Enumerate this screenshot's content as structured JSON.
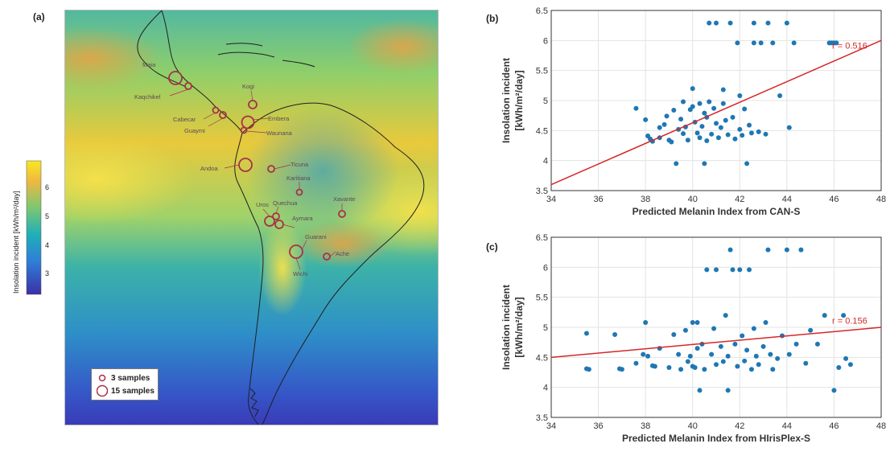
{
  "map": {
    "panel_label": "(a)",
    "colorbar": {
      "label": "Insolation incident [kWh/m²/day]",
      "ticks": [
        "6",
        "5",
        "4",
        "3"
      ]
    },
    "legend": {
      "small_label": "3 samples",
      "large_label": "15 samples"
    },
    "populations": [
      "Maia",
      "Kaqchikel",
      "Kogi",
      "Cabecar",
      "Embera",
      "Guaymi",
      "Waunana",
      "Andoa",
      "Ticuna",
      "Karitiana",
      "Quechua",
      "Uros",
      "Aymara",
      "Xavante",
      "Guarani",
      "Ache",
      "Wichi"
    ],
    "marker_color": "#a83048"
  },
  "chart_data": [
    {
      "panel_label": "(b)",
      "type": "scatter",
      "xlabel": "Predicted Melanin Index from CAN-S",
      "ylabel": "Insolation incident",
      "ylabel_unit": "[kWh/m²/day]",
      "xlim": [
        34,
        48
      ],
      "ylim": [
        3.5,
        6.5
      ],
      "xticks": [
        "34",
        "36",
        "38",
        "40",
        "42",
        "44",
        "46",
        "48"
      ],
      "yticks": [
        "3.5",
        "4",
        "4.5",
        "5",
        "5.5",
        "6",
        "6.5"
      ],
      "r_label": "r = 0.516",
      "point_color": "#1f77b4",
      "line_color": "#d62728",
      "fit_line": [
        [
          34,
          3.6
        ],
        [
          48,
          6.0
        ]
      ],
      "points": [
        [
          37.6,
          4.87
        ],
        [
          38.0,
          4.68
        ],
        [
          38.1,
          4.41
        ],
        [
          38.2,
          4.36
        ],
        [
          38.3,
          4.32
        ],
        [
          38.6,
          4.38
        ],
        [
          38.6,
          4.55
        ],
        [
          38.8,
          4.6
        ],
        [
          38.9,
          4.74
        ],
        [
          39.0,
          4.34
        ],
        [
          39.1,
          4.31
        ],
        [
          39.2,
          4.84
        ],
        [
          39.3,
          3.95
        ],
        [
          39.4,
          4.52
        ],
        [
          39.5,
          4.69
        ],
        [
          39.6,
          4.45
        ],
        [
          39.6,
          4.98
        ],
        [
          39.7,
          4.56
        ],
        [
          39.8,
          4.34
        ],
        [
          39.9,
          4.85
        ],
        [
          40.0,
          4.9
        ],
        [
          40.0,
          5.2
        ],
        [
          40.1,
          4.64
        ],
        [
          40.2,
          4.46
        ],
        [
          40.3,
          4.38
        ],
        [
          40.3,
          4.95
        ],
        [
          40.4,
          4.57
        ],
        [
          40.5,
          4.79
        ],
        [
          40.5,
          3.95
        ],
        [
          40.6,
          4.33
        ],
        [
          40.6,
          4.72
        ],
        [
          40.7,
          4.98
        ],
        [
          40.7,
          6.29
        ],
        [
          40.8,
          4.44
        ],
        [
          40.9,
          4.87
        ],
        [
          41.0,
          4.62
        ],
        [
          41.0,
          6.29
        ],
        [
          41.1,
          4.38
        ],
        [
          41.2,
          4.55
        ],
        [
          41.3,
          4.95
        ],
        [
          41.3,
          5.18
        ],
        [
          41.4,
          4.67
        ],
        [
          41.5,
          4.43
        ],
        [
          41.6,
          6.29
        ],
        [
          41.7,
          4.72
        ],
        [
          41.8,
          4.36
        ],
        [
          41.9,
          5.96
        ],
        [
          42.0,
          4.52
        ],
        [
          42.0,
          5.08
        ],
        [
          42.1,
          4.42
        ],
        [
          42.2,
          4.86
        ],
        [
          42.3,
          3.95
        ],
        [
          42.4,
          4.59
        ],
        [
          42.5,
          4.46
        ],
        [
          42.6,
          5.96
        ],
        [
          42.6,
          6.29
        ],
        [
          42.8,
          4.48
        ],
        [
          42.9,
          5.96
        ],
        [
          43.1,
          4.44
        ],
        [
          43.2,
          6.29
        ],
        [
          43.4,
          5.96
        ],
        [
          43.7,
          5.08
        ],
        [
          44.0,
          6.29
        ],
        [
          44.1,
          4.55
        ],
        [
          44.3,
          5.96
        ],
        [
          45.8,
          5.96
        ],
        [
          45.9,
          5.96
        ],
        [
          46.0,
          5.96
        ],
        [
          46.1,
          5.96
        ]
      ]
    },
    {
      "panel_label": "(c)",
      "type": "scatter",
      "xlabel": "Predicted Melanin Index from HIrisPlex-S",
      "ylabel": "Insolation incident",
      "ylabel_unit": "[kWh/m²/day]",
      "xlim": [
        34,
        48
      ],
      "ylim": [
        3.5,
        6.5
      ],
      "xticks": [
        "34",
        "36",
        "38",
        "40",
        "42",
        "44",
        "46",
        "48"
      ],
      "yticks": [
        "3.5",
        "4",
        "4.5",
        "5",
        "5.5",
        "6",
        "6.5"
      ],
      "r_label": "r = 0.156",
      "point_color": "#1f77b4",
      "line_color": "#d62728",
      "fit_line": [
        [
          34,
          4.5
        ],
        [
          48,
          5.0
        ]
      ],
      "points": [
        [
          35.5,
          4.9
        ],
        [
          35.5,
          4.31
        ],
        [
          35.6,
          4.3
        ],
        [
          36.7,
          4.88
        ],
        [
          36.9,
          4.31
        ],
        [
          37.0,
          4.3
        ],
        [
          37.6,
          4.4
        ],
        [
          37.9,
          4.55
        ],
        [
          38.0,
          5.08
        ],
        [
          38.1,
          4.52
        ],
        [
          38.3,
          4.36
        ],
        [
          38.4,
          4.35
        ],
        [
          38.6,
          4.65
        ],
        [
          39.0,
          4.33
        ],
        [
          39.2,
          4.88
        ],
        [
          39.4,
          4.55
        ],
        [
          39.5,
          4.3
        ],
        [
          39.7,
          4.95
        ],
        [
          39.8,
          4.43
        ],
        [
          39.9,
          4.52
        ],
        [
          40.0,
          4.35
        ],
        [
          40.0,
          5.08
        ],
        [
          40.1,
          4.33
        ],
        [
          40.2,
          4.65
        ],
        [
          40.2,
          5.08
        ],
        [
          40.3,
          3.95
        ],
        [
          40.4,
          4.72
        ],
        [
          40.5,
          4.3
        ],
        [
          40.6,
          5.96
        ],
        [
          40.8,
          4.55
        ],
        [
          40.9,
          4.98
        ],
        [
          41.0,
          5.96
        ],
        [
          41.0,
          4.38
        ],
        [
          41.2,
          4.68
        ],
        [
          41.3,
          4.43
        ],
        [
          41.4,
          5.2
        ],
        [
          41.5,
          4.52
        ],
        [
          41.5,
          3.95
        ],
        [
          41.6,
          6.29
        ],
        [
          41.7,
          5.96
        ],
        [
          41.8,
          4.72
        ],
        [
          41.9,
          4.35
        ],
        [
          42.0,
          5.96
        ],
        [
          42.1,
          4.86
        ],
        [
          42.2,
          4.44
        ],
        [
          42.3,
          4.62
        ],
        [
          42.4,
          5.96
        ],
        [
          42.5,
          4.3
        ],
        [
          42.6,
          4.98
        ],
        [
          42.7,
          4.52
        ],
        [
          42.8,
          4.38
        ],
        [
          43.0,
          4.68
        ],
        [
          43.1,
          5.08
        ],
        [
          43.2,
          6.29
        ],
        [
          43.3,
          4.55
        ],
        [
          43.4,
          4.3
        ],
        [
          43.6,
          4.48
        ],
        [
          43.8,
          4.86
        ],
        [
          44.0,
          6.29
        ],
        [
          44.1,
          4.55
        ],
        [
          44.4,
          4.72
        ],
        [
          44.6,
          6.29
        ],
        [
          44.8,
          4.4
        ],
        [
          45.0,
          4.95
        ],
        [
          45.3,
          4.72
        ],
        [
          45.6,
          5.2
        ],
        [
          46.0,
          3.95
        ],
        [
          46.2,
          4.33
        ],
        [
          46.4,
          5.2
        ],
        [
          46.5,
          4.48
        ],
        [
          46.7,
          4.38
        ]
      ]
    }
  ]
}
